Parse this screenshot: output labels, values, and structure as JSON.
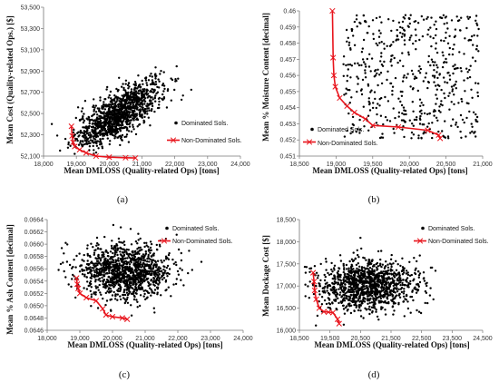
{
  "panels": [
    {
      "id": "a",
      "caption": "(a)",
      "xlabel": "Mean DMLOSS (Quality-related  Ops) [tons]",
      "ylabel": "Mean Cost (Quality-related  Ops.) [$]",
      "xticks": [
        18000,
        19000,
        20000,
        21000,
        22000,
        23000,
        24000
      ],
      "xtick_labels": [
        "18,000",
        "19,000",
        "20,000",
        "21,000",
        "22,000",
        "23,000",
        "24,000"
      ],
      "yticks": [
        52100,
        52300,
        52500,
        52700,
        52900,
        53100,
        53300,
        53500
      ],
      "ytick_labels": [
        "52,100",
        "52,300",
        "52,500",
        "52,700",
        "52,900",
        "53,100",
        "53,300",
        "53,500"
      ],
      "legend": {
        "dominated": "Dominated Sols.",
        "nondominated": "Non-Dominated Sols."
      }
    },
    {
      "id": "b",
      "caption": "(b)",
      "xlabel": "Mean DMLOSS (Quality-related  Ops) [tons]",
      "ylabel": "Mean % Moisture Content [decimal]",
      "xticks": [
        18500,
        19000,
        19500,
        20000,
        20500,
        21000
      ],
      "xtick_labels": [
        "18,500",
        "19,000",
        "19,500",
        "20,000",
        "20,500",
        "21,000"
      ],
      "yticks": [
        0.451,
        0.452,
        0.453,
        0.454,
        0.455,
        0.456,
        0.457,
        0.458,
        0.459,
        0.46
      ],
      "ytick_labels": [
        "0.451",
        "0.452",
        "0.453",
        "0.454",
        "0.455",
        "0.456",
        "0.457",
        "0.458",
        "0.459",
        "0.46"
      ],
      "legend": {
        "dominated": "Dominated Sols.",
        "nondominated": "Non-Dominated Sols."
      }
    },
    {
      "id": "c",
      "caption": "(c)",
      "xlabel": "Mean DMLOSS (Quality-related  Ops) [tons]",
      "ylabel": "Mean % Ash Content [decimal]",
      "xticks": [
        18000,
        19000,
        20000,
        21000,
        22000,
        23000,
        24000
      ],
      "xtick_labels": [
        "18,000",
        "19,000",
        "20,000",
        "21,000",
        "22,000",
        "23,000",
        "24,000"
      ],
      "yticks": [
        0.0646,
        0.0648,
        0.065,
        0.0652,
        0.0654,
        0.0656,
        0.0658,
        0.066,
        0.0662,
        0.0664
      ],
      "ytick_labels": [
        "0.0646",
        "0.0648",
        "0.0650",
        "0.0652",
        "0.0654",
        "0.0656",
        "0.0658",
        "0.0660",
        "0.0662",
        "0.0664"
      ],
      "legend": {
        "dominated": "Dominated Sols.",
        "nondominated": "Non-Dominated Sols."
      }
    },
    {
      "id": "d",
      "caption": "(d)",
      "xlabel": "Mean DMLOSS (Quality-related  Ops) [tons]",
      "ylabel": "Mean Dockage Cost [$]",
      "xticks": [
        18500,
        19500,
        20500,
        21500,
        22500,
        23500,
        24500
      ],
      "xtick_labels": [
        "18,500",
        "19,500",
        "20,500",
        "21,500",
        "22,500",
        "23,500",
        "24,500"
      ],
      "yticks": [
        16000,
        16500,
        17000,
        17500,
        18000,
        18500
      ],
      "ytick_labels": [
        "16,000",
        "16,500",
        "17,000",
        "17,500",
        "18,000",
        "18,500"
      ],
      "legend": {
        "dominated": "Dominated Sols.",
        "nondominated": "Non-Dominated Sols."
      }
    }
  ],
  "chart_data": [
    {
      "type": "scatter",
      "panel": "a",
      "xlim": [
        18000,
        24000
      ],
      "ylim": [
        52100,
        53500
      ],
      "grid": false,
      "legend_position": "bottom-right",
      "series": [
        {
          "name": "Dominated Sols.",
          "kind": "cloud",
          "count": 1200,
          "center": [
            20300,
            52500
          ],
          "spread": [
            650,
            160
          ],
          "correlation": 0.75,
          "color": "#000000"
        },
        {
          "name": "Non-Dominated Sols.",
          "kind": "front",
          "color": "#e8141c",
          "x": [
            18850,
            18870,
            18900,
            18950,
            19100,
            19300,
            19600,
            20000,
            20500,
            20800
          ],
          "y": [
            52380,
            52290,
            52230,
            52190,
            52160,
            52130,
            52100,
            52090,
            52085,
            52082
          ]
        }
      ]
    },
    {
      "type": "scatter",
      "panel": "b",
      "xlim": [
        18500,
        21000
      ],
      "ylim": [
        0.451,
        0.46
      ],
      "grid": false,
      "legend_position": "bottom-left",
      "series": [
        {
          "name": "Dominated Sols.",
          "kind": "uniform",
          "count": 520,
          "xrange": [
            19100,
            20950
          ],
          "yrange": [
            0.4521,
            0.4598
          ],
          "color": "#000000"
        },
        {
          "name": "Non-Dominated Sols.",
          "kind": "front",
          "color": "#e8141c",
          "x": [
            18950,
            18960,
            18970,
            18990,
            19050,
            19150,
            19250,
            19400,
            19500,
            19850,
            20250,
            20400,
            20420
          ],
          "y": [
            0.46,
            0.4571,
            0.456,
            0.4553,
            0.4546,
            0.4541,
            0.4537,
            0.4533,
            0.4529,
            0.4528,
            0.4526,
            0.4523,
            0.4521
          ]
        }
      ]
    },
    {
      "type": "scatter",
      "panel": "c",
      "xlim": [
        18000,
        24000
      ],
      "ylim": [
        0.0646,
        0.0664
      ],
      "grid": false,
      "legend_position": "top-right",
      "series": [
        {
          "name": "Dominated Sols.",
          "kind": "cloud",
          "count": 1200,
          "center": [
            20400,
            0.06555
          ],
          "spread": [
            700,
            0.00022
          ],
          "correlation": 0.0,
          "color": "#000000"
        },
        {
          "name": "Non-Dominated Sols.",
          "kind": "front",
          "color": "#e8141c",
          "x": [
            18900,
            18920,
            18950,
            19000,
            19200,
            19500,
            19700,
            19800,
            20000,
            20300,
            20450
          ],
          "y": [
            0.06545,
            0.06535,
            0.06528,
            0.0652,
            0.06513,
            0.06508,
            0.06495,
            0.06485,
            0.06482,
            0.0648,
            0.06478
          ]
        }
      ]
    },
    {
      "type": "scatter",
      "panel": "d",
      "xlim": [
        18500,
        24500
      ],
      "ylim": [
        16000,
        18500
      ],
      "grid": false,
      "legend_position": "top-right",
      "series": [
        {
          "name": "Dominated Sols.",
          "kind": "cloud",
          "count": 1200,
          "center": [
            20700,
            17020
          ],
          "spread": [
            850,
            290
          ],
          "correlation": 0.0,
          "color": "#000000"
        },
        {
          "name": "Non-Dominated Sols.",
          "kind": "front",
          "color": "#e8141c",
          "x": [
            18950,
            18980,
            19000,
            19050,
            19150,
            19300,
            19450,
            19600,
            19750,
            19800
          ],
          "y": [
            17300,
            17100,
            16900,
            16700,
            16500,
            16420,
            16410,
            16400,
            16250,
            16150
          ]
        }
      ]
    }
  ]
}
